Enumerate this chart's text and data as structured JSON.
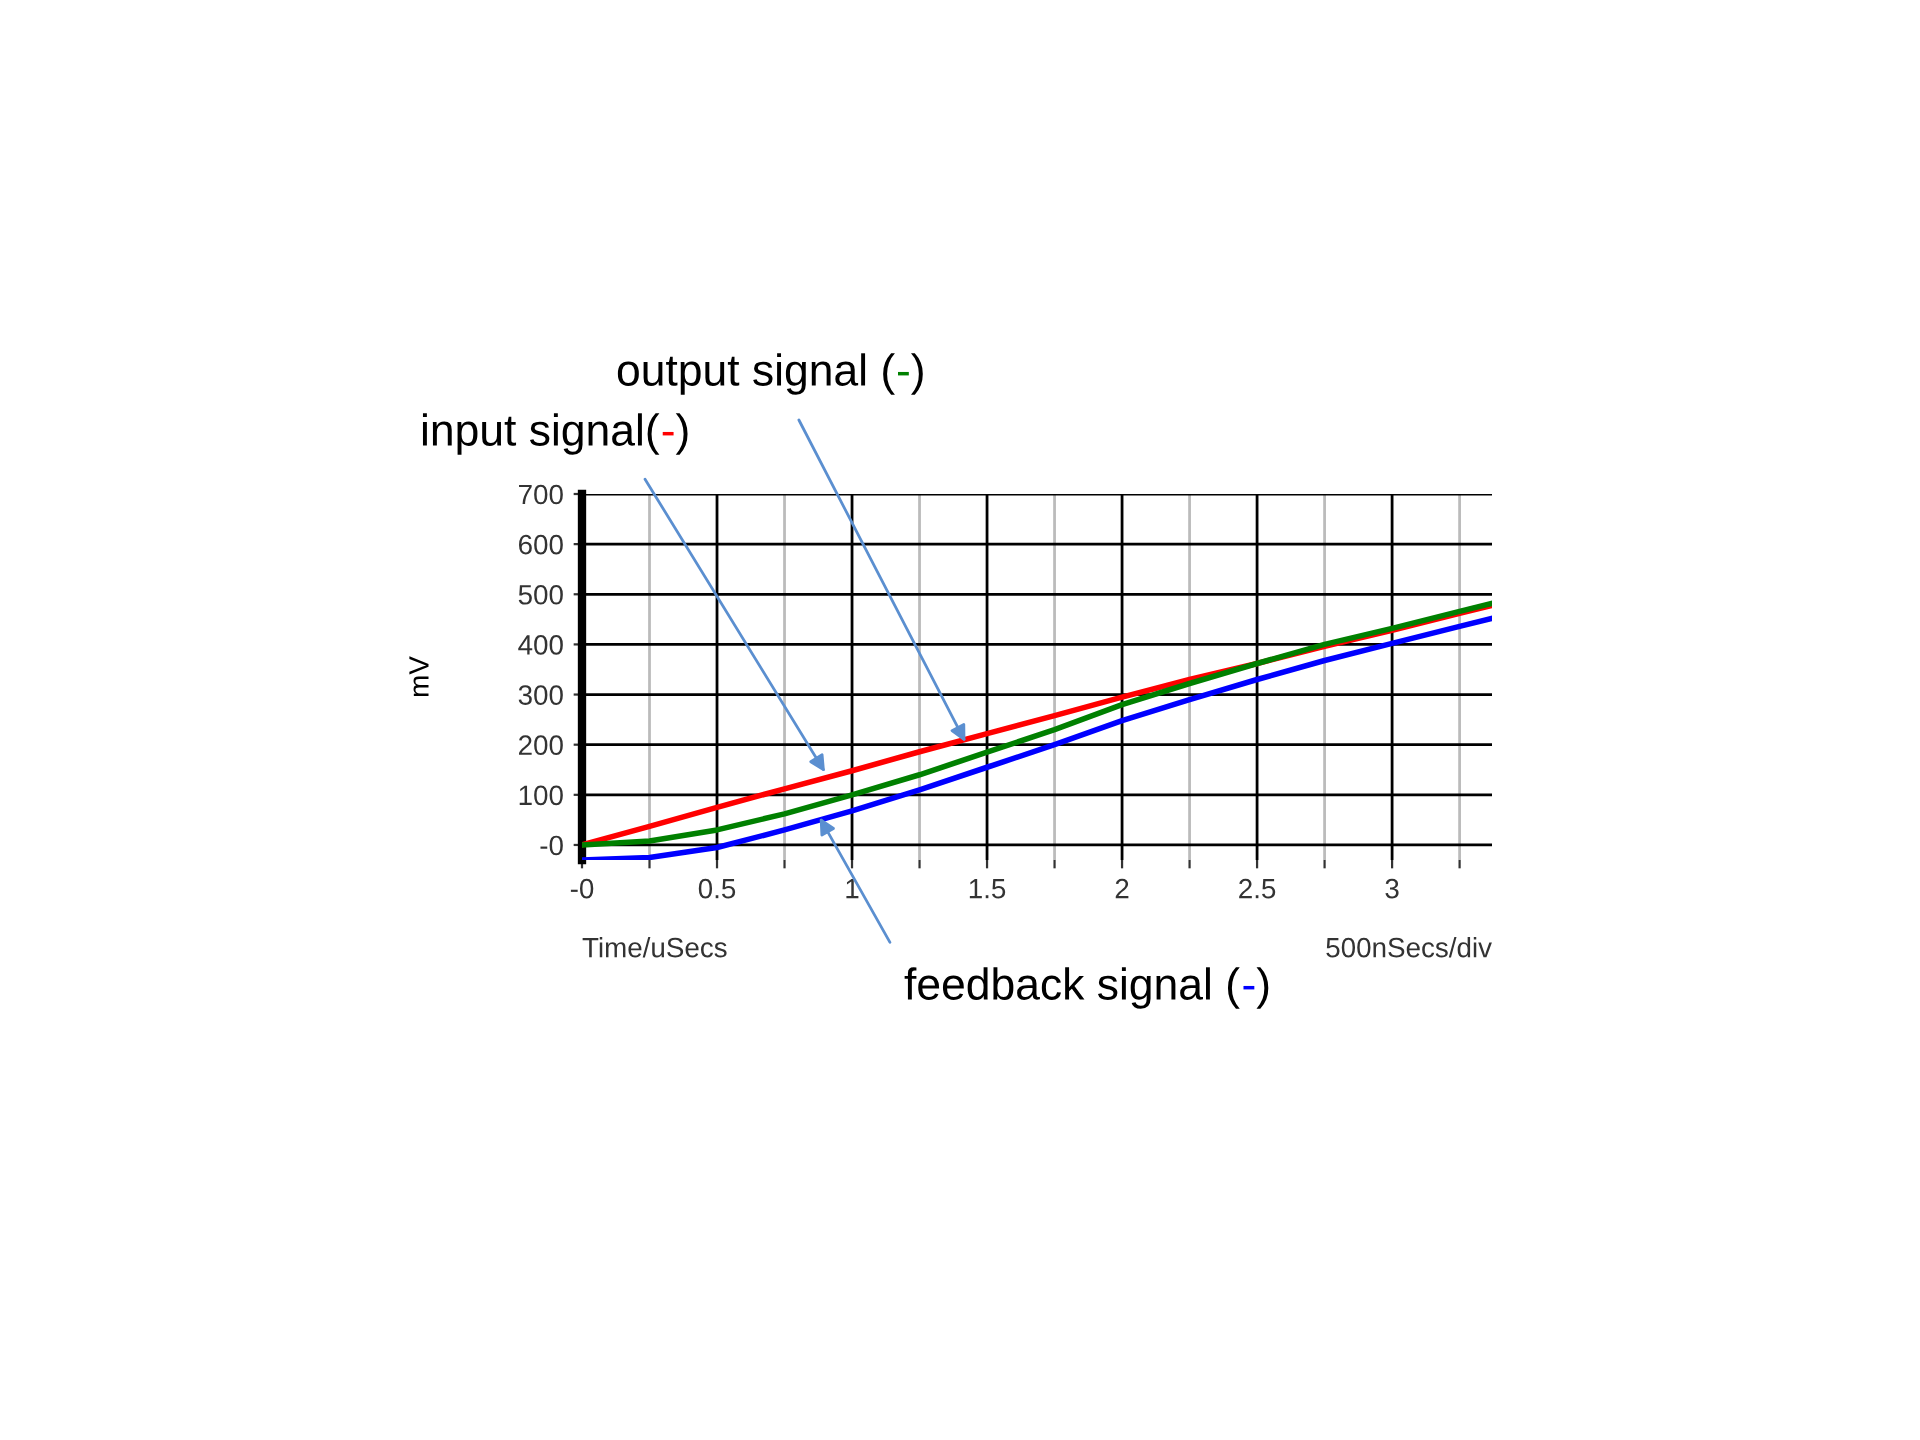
{
  "chart_data": {
    "type": "line",
    "xlabel": "Time/uSecs",
    "ylabel": "mV",
    "x": [
      0,
      0.25,
      0.5,
      0.75,
      1,
      1.25,
      1.5,
      1.75,
      2,
      2.25,
      2.5,
      2.75,
      3,
      3.25,
      3.37
    ],
    "series": [
      {
        "color": "#ff0000",
        "values": [
          0,
          37,
          75,
          112,
          148,
          186,
          222,
          258,
          295,
          330,
          362,
          396,
          428,
          462,
          478
        ]
      },
      {
        "color": "#008000",
        "values": [
          0,
          8,
          30,
          62,
          100,
          140,
          185,
          230,
          280,
          322,
          362,
          400,
          432,
          466,
          482
        ]
      },
      {
        "color": "#0000ff",
        "values": [
          -30,
          -25,
          -5,
          30,
          68,
          110,
          155,
          200,
          248,
          290,
          330,
          368,
          402,
          436,
          452
        ]
      }
    ],
    "xlim": [
      0,
      3.37
    ],
    "ylim": [
      -30,
      700
    ],
    "xticks": [
      {
        "value": 0,
        "label": "-0"
      },
      {
        "value": 0.25,
        "label": null
      },
      0.5,
      {
        "value": 0.75,
        "label": null
      },
      1,
      {
        "value": 1.25,
        "label": null
      },
      1.5,
      {
        "value": 1.75,
        "label": null
      },
      2,
      {
        "value": 2.25,
        "label": null
      },
      2.5,
      {
        "value": 2.75,
        "label": null
      },
      3,
      {
        "value": 3.25,
        "label": null
      }
    ],
    "yticks": [
      {
        "value": 0,
        "label": "-0"
      },
      100,
      200,
      300,
      400,
      500,
      600,
      700
    ],
    "grid": true,
    "legend": false,
    "marker": "none",
    "line_style": "solid",
    "annotations": [
      {
        "text": "input signal(-)",
        "x": 0.9,
        "y": 145
      },
      {
        "text": "output signal (-)",
        "x": 1.42,
        "y": 205
      },
      {
        "text": "feedback signal (-)",
        "x": 0.88,
        "y": 55
      },
      "500nSecs/div"
    ]
  }
}
